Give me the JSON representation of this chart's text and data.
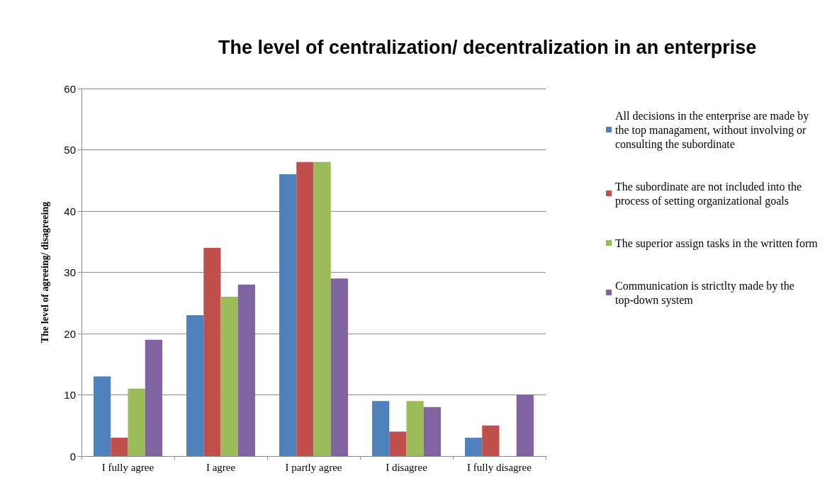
{
  "chart_data": {
    "type": "bar",
    "title": "The level of centralization/ decentralization in an enterprise",
    "ylabel": "The level of agreeing/ disagreeing",
    "categories": [
      "I fully agree",
      "I agree",
      "I partly agree",
      "I disagree",
      "I fully disagree"
    ],
    "series": [
      {
        "name": "All decisions in the enterprise are made by the top managament, without involving or consulting the subordinate",
        "color": "#4f81bd",
        "values": [
          13,
          23,
          46,
          9,
          3
        ]
      },
      {
        "name": "The subordinate are not included into the process of setting organizational goals",
        "color": "#c0504d",
        "values": [
          3,
          34,
          48,
          4,
          5
        ]
      },
      {
        "name": "The superior assign tasks in the written form",
        "color": "#9bbb59",
        "values": [
          11,
          26,
          48,
          9,
          0
        ]
      },
      {
        "name": "Communication is strictlty made by the top-down system",
        "color": "#8064a2",
        "values": [
          19,
          28,
          29,
          8,
          10
        ]
      }
    ],
    "ylim": [
      0,
      60
    ],
    "yticks": [
      0,
      10,
      20,
      30,
      40,
      50,
      60
    ],
    "grid": "y",
    "legend": "right"
  }
}
